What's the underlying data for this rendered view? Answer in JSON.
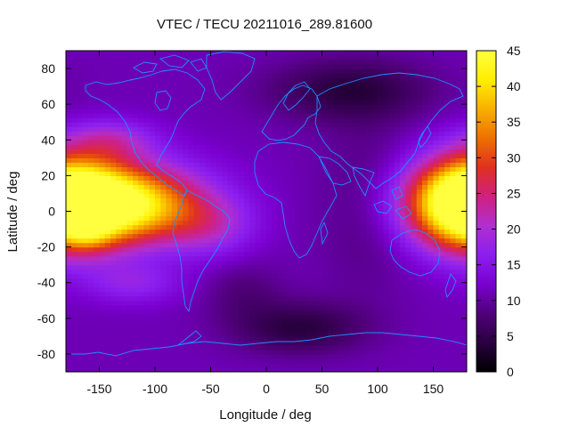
{
  "chart_data": {
    "type": "heatmap",
    "title": "VTEC / TECU 20211016_289.81600",
    "xlabel": "Longitude / deg",
    "ylabel": "Latitude / deg",
    "xlim": [
      -180,
      180
    ],
    "ylim": [
      -90,
      90
    ],
    "x_ticks": [
      -150,
      -100,
      -50,
      0,
      50,
      100,
      150
    ],
    "y_ticks": [
      -80,
      -60,
      -40,
      -20,
      0,
      20,
      40,
      60,
      80
    ],
    "colorbar": {
      "min": 0,
      "max": 45,
      "ticks": [
        0,
        5,
        10,
        15,
        20,
        25,
        30,
        35,
        40,
        45
      ],
      "palette": [
        "#000000",
        "#2a0040",
        "#50007a",
        "#7a00d0",
        "#8b1ff0",
        "#b02fd0",
        "#d02080",
        "#e03020",
        "#ee7000",
        "#f8b000",
        "#ffee00",
        "#ffff40"
      ]
    },
    "coastline_color": "#1e90ff",
    "grid": false,
    "model": {
      "background": 11,
      "blobs": [
        {
          "lon": -145,
          "lat": 5,
          "slon": 55,
          "slat": 16,
          "amp": 32
        },
        {
          "lon": -110,
          "lat": 2,
          "slon": 35,
          "slat": 12,
          "amp": 6
        },
        {
          "lon": -158,
          "lat": -12,
          "slon": 14,
          "slat": 7,
          "amp": 5
        },
        {
          "lon": -50,
          "lat": -8,
          "slon": 28,
          "slat": 12,
          "amp": 7
        },
        {
          "lon": 180,
          "lat": 5,
          "slon": 32,
          "slat": 18,
          "amp": 28
        },
        {
          "lon": -140,
          "lat": 40,
          "slon": 28,
          "slat": 8,
          "amp": 8
        },
        {
          "lon": 75,
          "lat": 68,
          "slon": 50,
          "slat": 12,
          "amp": -7
        },
        {
          "lon": 30,
          "lat": -65,
          "slon": 40,
          "slat": 10,
          "amp": -7
        },
        {
          "lon": 90,
          "lat": 5,
          "slon": 30,
          "slat": 35,
          "amp": -3
        },
        {
          "lon": -20,
          "lat": -45,
          "slon": 25,
          "slat": 12,
          "amp": -3
        },
        {
          "lon": -120,
          "lat": -40,
          "slon": 30,
          "slat": 8,
          "amp": 6
        }
      ]
    }
  }
}
